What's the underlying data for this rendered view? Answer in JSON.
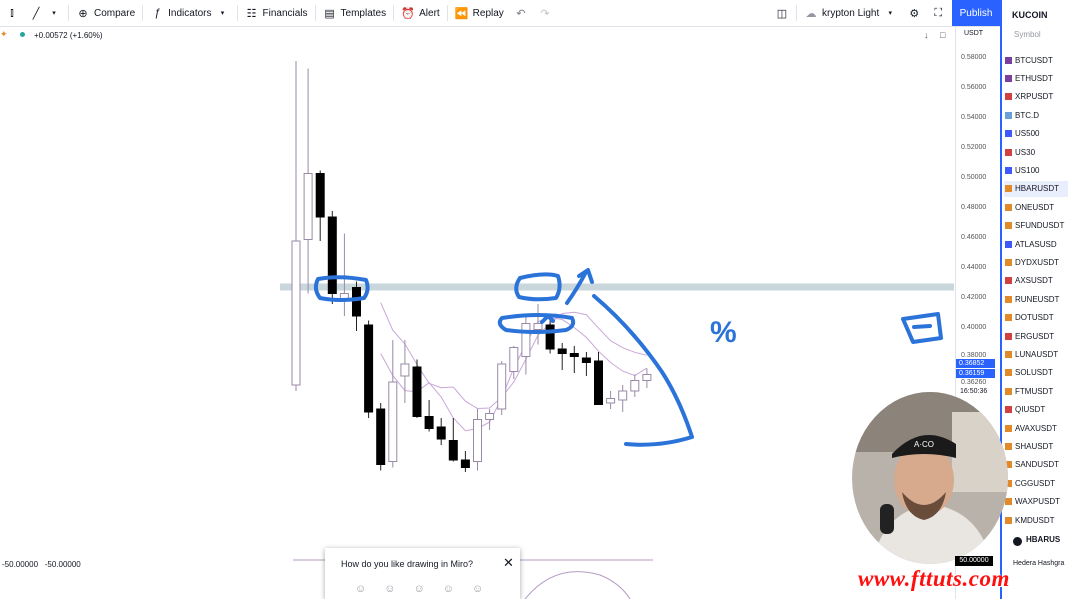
{
  "toolbar": {
    "compare": "Compare",
    "indicators": "Indicators",
    "financials": "Financials",
    "templates": "Templates",
    "alert": "Alert",
    "replay": "Replay",
    "theme": "krypton Light",
    "publish": "Publish"
  },
  "legend": {
    "change": "+0.00572 (+1.60%)"
  },
  "price_scale": {
    "currency": "USDT",
    "ticks": [
      "0.58000",
      "0.56000",
      "0.54000",
      "0.52000",
      "0.50000",
      "0.48000",
      "0.46000",
      "0.44000",
      "0.42000",
      "0.40000",
      "0.38000",
      "0.36260"
    ],
    "label_blue_1": "0.36852",
    "label_blue_2": "0.36159",
    "label_time": "16:50:36",
    "label_bottom": "50.00000"
  },
  "bottom_left": {
    "v1": "-50.00000",
    "v2": "-50.00000"
  },
  "miro_prompt": {
    "question": "How do you like drawing in Miro?"
  },
  "watchlist": {
    "exchange": "KUCOIN",
    "column": "Symbol",
    "items": [
      {
        "symbol": "BTCUSDT",
        "color": "#7b3fa0"
      },
      {
        "symbol": "ETHUSDT",
        "color": "#7b3fa0"
      },
      {
        "symbol": "XRPUSDT",
        "color": "#d0413f"
      },
      {
        "symbol": "BTC.D",
        "color": "#6aa0d8"
      },
      {
        "symbol": "US500",
        "color": "#3d5afe"
      },
      {
        "symbol": "US30",
        "color": "#d0413f"
      },
      {
        "symbol": "US100",
        "color": "#3d5afe"
      },
      {
        "symbol": "HBARUSDT",
        "color": "#e08a2a"
      },
      {
        "symbol": "ONEUSDT",
        "color": "#e08a2a"
      },
      {
        "symbol": "SFUNDUSDT",
        "color": "#e08a2a"
      },
      {
        "symbol": "ATLASUSD",
        "color": "#3d5afe"
      },
      {
        "symbol": "DYDXUSDT",
        "color": "#e08a2a"
      },
      {
        "symbol": "AXSUSDT",
        "color": "#d0413f"
      },
      {
        "symbol": "RUNEUSDT",
        "color": "#e08a2a"
      },
      {
        "symbol": "DOTUSDT",
        "color": "#e08a2a"
      },
      {
        "symbol": "ERGUSDT",
        "color": "#d0413f"
      },
      {
        "symbol": "LUNAUSDT",
        "color": "#e08a2a"
      },
      {
        "symbol": "SOLUSDT",
        "color": "#e08a2a"
      },
      {
        "symbol": "FTMUSDT",
        "color": "#e08a2a"
      },
      {
        "symbol": "QIUSDT",
        "color": "#d0413f"
      },
      {
        "symbol": "AVAXUSDT",
        "color": "#e08a2a"
      },
      {
        "symbol": "SHAUSDT",
        "color": "#e08a2a"
      },
      {
        "symbol": "SANDUSDT",
        "color": "#e08a2a"
      },
      {
        "symbol": "CGGUSDT",
        "color": "#e08a2a"
      },
      {
        "symbol": "WAXPUSDT",
        "color": "#e08a2a"
      },
      {
        "symbol": "KMDUSDT",
        "color": "#e08a2a"
      }
    ],
    "footer_symbol": "HBARUS",
    "footer_name": "Hedera Hashgra"
  },
  "watermark": "www.fttuts.com",
  "annotation_mark": "%",
  "chart_data": {
    "type": "candlestick",
    "currency": "USDT",
    "candles": [
      {
        "o": 0.362,
        "h": 0.578,
        "l": 0.358,
        "c": 0.458,
        "dir": "up"
      },
      {
        "o": 0.459,
        "h": 0.573,
        "l": 0.423,
        "c": 0.503,
        "dir": "up"
      },
      {
        "o": 0.503,
        "h": 0.505,
        "l": 0.458,
        "c": 0.474,
        "dir": "down"
      },
      {
        "o": 0.474,
        "h": 0.478,
        "l": 0.416,
        "c": 0.423,
        "dir": "down"
      },
      {
        "o": 0.419,
        "h": 0.463,
        "l": 0.408,
        "c": 0.423,
        "dir": "up"
      },
      {
        "o": 0.427,
        "h": 0.431,
        "l": 0.398,
        "c": 0.408,
        "dir": "down"
      },
      {
        "o": 0.402,
        "h": 0.405,
        "l": 0.34,
        "c": 0.344,
        "dir": "down"
      },
      {
        "o": 0.346,
        "h": 0.35,
        "l": 0.305,
        "c": 0.309,
        "dir": "down"
      },
      {
        "o": 0.311,
        "h": 0.392,
        "l": 0.307,
        "c": 0.364,
        "dir": "up"
      },
      {
        "o": 0.376,
        "h": 0.392,
        "l": 0.35,
        "c": 0.368,
        "dir": "up"
      },
      {
        "o": 0.374,
        "h": 0.379,
        "l": 0.34,
        "c": 0.341,
        "dir": "down"
      },
      {
        "o": 0.341,
        "h": 0.352,
        "l": 0.331,
        "c": 0.333,
        "dir": "down"
      },
      {
        "o": 0.334,
        "h": 0.34,
        "l": 0.322,
        "c": 0.326,
        "dir": "down"
      },
      {
        "o": 0.325,
        "h": 0.34,
        "l": 0.311,
        "c": 0.312,
        "dir": "down"
      },
      {
        "o": 0.312,
        "h": 0.318,
        "l": 0.304,
        "c": 0.307,
        "dir": "down"
      },
      {
        "o": 0.311,
        "h": 0.346,
        "l": 0.305,
        "c": 0.339,
        "dir": "up"
      },
      {
        "o": 0.339,
        "h": 0.346,
        "l": 0.332,
        "c": 0.343,
        "dir": "up"
      },
      {
        "o": 0.346,
        "h": 0.378,
        "l": 0.342,
        "c": 0.376,
        "dir": "up"
      },
      {
        "o": 0.371,
        "h": 0.388,
        "l": 0.366,
        "c": 0.387,
        "dir": "up"
      },
      {
        "o": 0.381,
        "h": 0.408,
        "l": 0.369,
        "c": 0.403,
        "dir": "up"
      },
      {
        "o": 0.399,
        "h": 0.416,
        "l": 0.389,
        "c": 0.403,
        "dir": "up"
      },
      {
        "o": 0.402,
        "h": 0.408,
        "l": 0.383,
        "c": 0.386,
        "dir": "down"
      },
      {
        "o": 0.386,
        "h": 0.39,
        "l": 0.372,
        "c": 0.383,
        "dir": "down"
      },
      {
        "o": 0.383,
        "h": 0.388,
        "l": 0.37,
        "c": 0.381,
        "dir": "down"
      },
      {
        "o": 0.38,
        "h": 0.384,
        "l": 0.368,
        "c": 0.377,
        "dir": "down"
      },
      {
        "o": 0.378,
        "h": 0.384,
        "l": 0.349,
        "c": 0.349,
        "dir": "down"
      },
      {
        "o": 0.35,
        "h": 0.358,
        "l": 0.346,
        "c": 0.353,
        "dir": "up"
      },
      {
        "o": 0.352,
        "h": 0.362,
        "l": 0.344,
        "c": 0.358,
        "dir": "up"
      },
      {
        "o": 0.358,
        "h": 0.369,
        "l": 0.354,
        "c": 0.365,
        "dir": "up"
      },
      {
        "o": 0.365,
        "h": 0.373,
        "l": 0.36,
        "c": 0.369,
        "dir": "up"
      }
    ],
    "horizontal_level": 0.427,
    "ylim": [
      0.3,
      0.585
    ]
  }
}
